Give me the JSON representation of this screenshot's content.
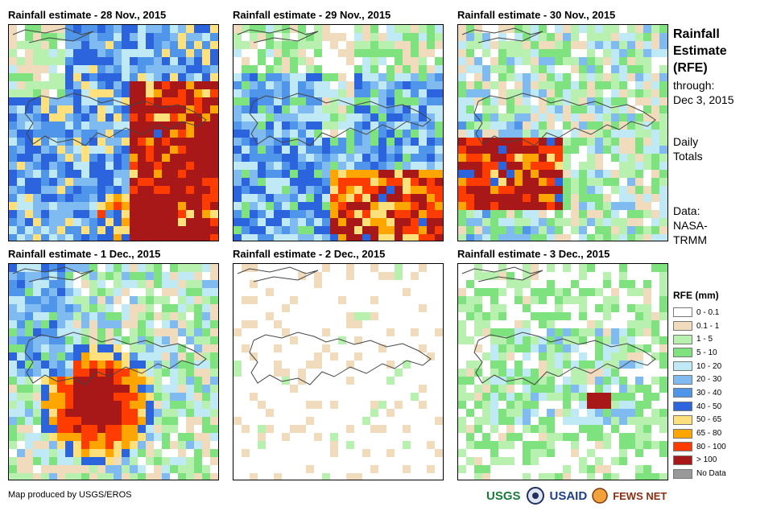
{
  "panels": [
    {
      "title": "Rainfall estimate - 28 Nov., 2015",
      "seed": 11,
      "pattern": "p1"
    },
    {
      "title": "Rainfall estimate - 29 Nov., 2015",
      "seed": 23,
      "pattern": "p2"
    },
    {
      "title": "Rainfall estimate - 30 Nov., 2015",
      "seed": 37,
      "pattern": "p3"
    },
    {
      "title": "Rainfall estimate - 1 Dec., 2015",
      "seed": 41,
      "pattern": "p4"
    },
    {
      "title": "Rainfall estimate - 2 Dec., 2015",
      "seed": 53,
      "pattern": "p5"
    },
    {
      "title": "Rainfall estimate - 3 Dec., 2015",
      "seed": 67,
      "pattern": "p6"
    }
  ],
  "sidebar": {
    "title_lines": [
      "Rainfall",
      "Estimate",
      "(RFE)"
    ],
    "through_label": "through:",
    "through_date": "Dec 3, 2015",
    "totals_lines": [
      "Daily",
      "Totals"
    ],
    "data_lines": [
      "Data:",
      "NASA-",
      "TRMM"
    ]
  },
  "legend": {
    "title": "RFE (mm)",
    "items": [
      {
        "label": "0 - 0.1",
        "color": "#ffffff"
      },
      {
        "label": "0.1 - 1",
        "color": "#f0dcbc"
      },
      {
        "label": "1 - 5",
        "color": "#b8f0b0"
      },
      {
        "label": "5 - 10",
        "color": "#7ee27e"
      },
      {
        "label": "10 - 20",
        "color": "#bfeaf5"
      },
      {
        "label": "20 - 30",
        "color": "#7fbaf0"
      },
      {
        "label": "30 - 40",
        "color": "#4f95ea"
      },
      {
        "label": "40 - 50",
        "color": "#2b64dc"
      },
      {
        "label": "50 - 65",
        "color": "#ffe07a"
      },
      {
        "label": "65 - 80",
        "color": "#ffa500"
      },
      {
        "label": "80 - 100",
        "color": "#ff3c00"
      },
      {
        "label": "> 100",
        "color": "#a81818"
      },
      {
        "label": "No Data",
        "color": "#999999"
      }
    ]
  },
  "credit": "Map produced by USGS/EROS",
  "logos": [
    "USGS",
    "USAID",
    "FEWS NET"
  ]
}
